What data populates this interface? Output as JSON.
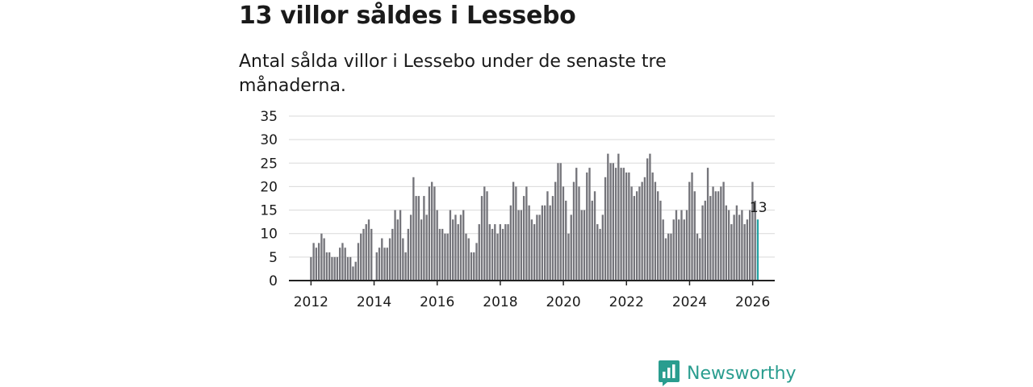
{
  "title": "13 villor såldes i Lessebo",
  "subtitle": "Antal sålda villor i Lessebo under de senaste tre månaderna.",
  "logo": {
    "text": "Newsworthy",
    "icon": "newsworthy-logo-icon"
  },
  "colors": {
    "bar": "#75757b",
    "highlight": "#24a3a3",
    "grid": "#d9d9d9",
    "axis": "#222222"
  },
  "chart_data": {
    "type": "bar",
    "title": "",
    "xlabel": "",
    "ylabel": "",
    "ylim": [
      0,
      35
    ],
    "yticks": [
      0,
      5,
      10,
      15,
      20,
      25,
      30,
      35
    ],
    "xlim": [
      2011.3,
      2026.7
    ],
    "xticks": [
      2012,
      2014,
      2016,
      2018,
      2020,
      2022,
      2024,
      2026
    ],
    "start": 2012.0,
    "step": 0.0833,
    "highlight_label": "13",
    "values": [
      5,
      8,
      7,
      8,
      10,
      9,
      6,
      6,
      5,
      5,
      5,
      7,
      8,
      7,
      5,
      5,
      3,
      4,
      8,
      10,
      11,
      12,
      13,
      11,
      0,
      6,
      7,
      9,
      7,
      7,
      9,
      11,
      15,
      13,
      15,
      9,
      6,
      11,
      14,
      22,
      18,
      18,
      13,
      18,
      14,
      20,
      21,
      20,
      15,
      11,
      11,
      10,
      10,
      15,
      13,
      14,
      12,
      14,
      15,
      10,
      9,
      6,
      6,
      8,
      12,
      18,
      20,
      19,
      12,
      11,
      12,
      10,
      12,
      11,
      12,
      12,
      16,
      21,
      20,
      15,
      15,
      18,
      20,
      16,
      13,
      12,
      14,
      14,
      16,
      16,
      19,
      16,
      18,
      21,
      25,
      25,
      20,
      17,
      10,
      14,
      21,
      24,
      20,
      15,
      15,
      23,
      24,
      17,
      19,
      12,
      11,
      14,
      22,
      27,
      25,
      25,
      24,
      27,
      24,
      24,
      23,
      23,
      20,
      18,
      19,
      20,
      21,
      22,
      26,
      27,
      23,
      21,
      19,
      17,
      13,
      9,
      10,
      10,
      13,
      15,
      13,
      15,
      13,
      15,
      21,
      23,
      19,
      10,
      9,
      16,
      17,
      24,
      18,
      20,
      19,
      19,
      20,
      21,
      16,
      15,
      12,
      14,
      16,
      14,
      15,
      12,
      13,
      15,
      21,
      17,
      13
    ]
  }
}
